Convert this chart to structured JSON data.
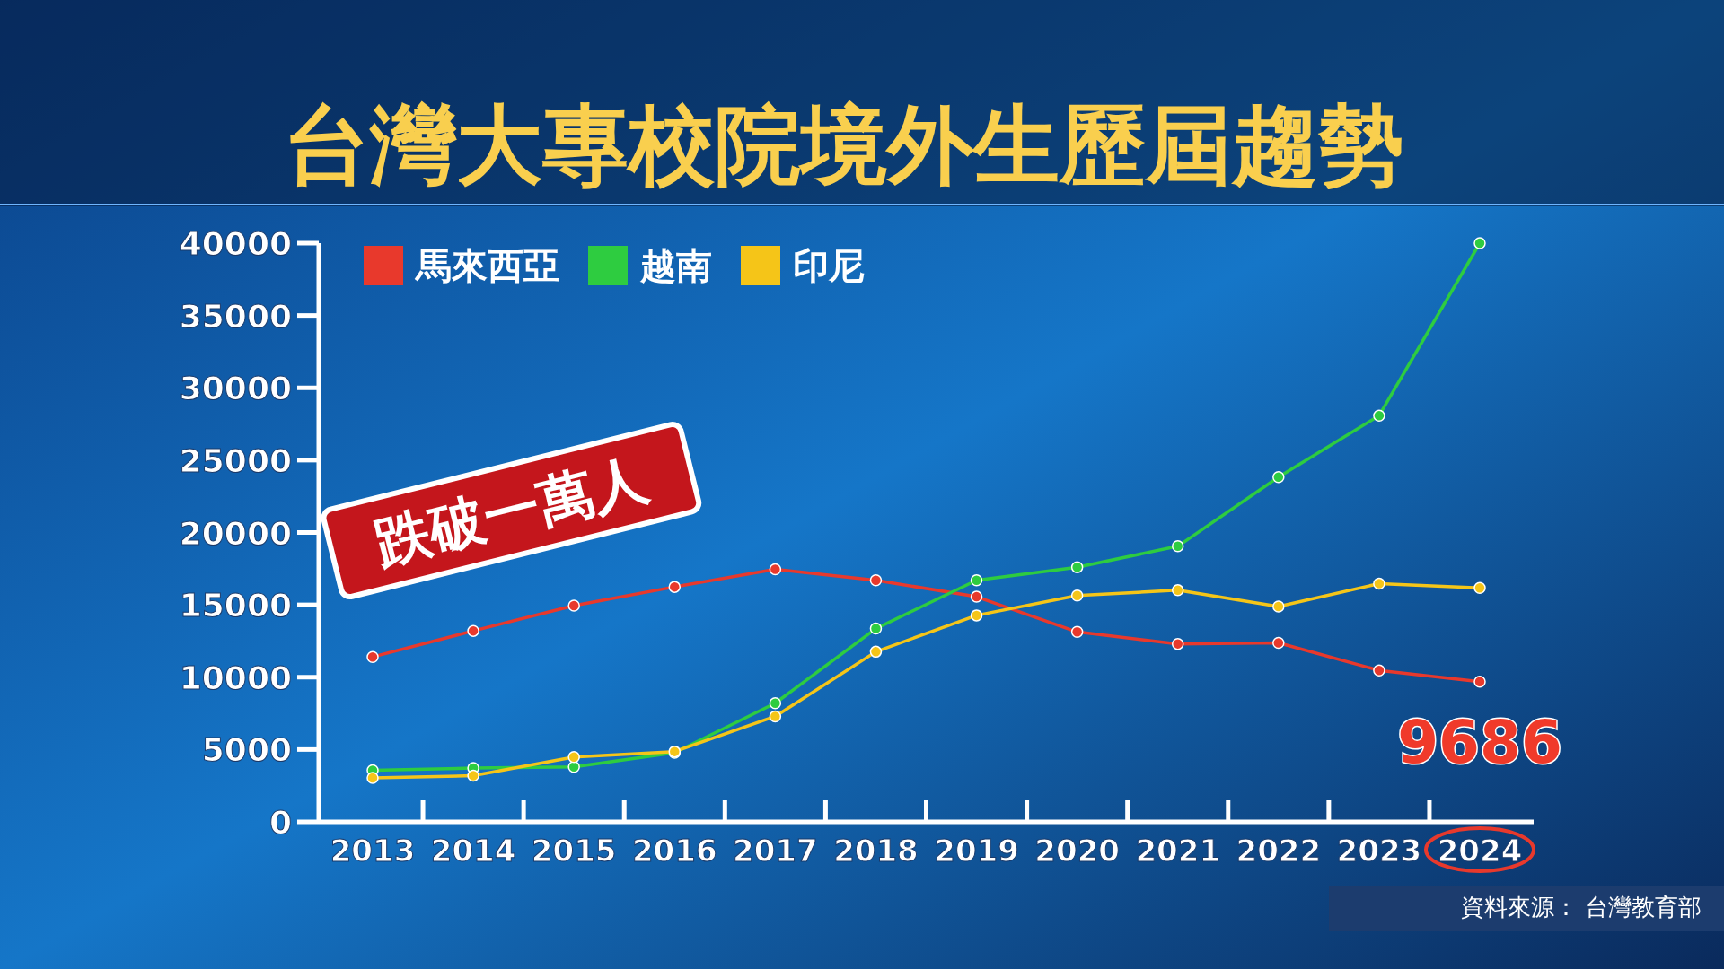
{
  "chart_data": {
    "type": "line",
    "title": "台灣大專校院境外生歷屆趨勢",
    "categories": [
      "2013",
      "2014",
      "2015",
      "2016",
      "2017",
      "2018",
      "2019",
      "2020",
      "2021",
      "2022",
      "2023",
      "2024"
    ],
    "series": [
      {
        "name": "馬來西亞",
        "color": "#e8392c",
        "values": [
          11400,
          13200,
          14950,
          16240,
          17460,
          16700,
          15560,
          13130,
          12300,
          12370,
          10470,
          9686
        ]
      },
      {
        "name": "越南",
        "color": "#2ecc40",
        "values": [
          3570,
          3720,
          3800,
          4780,
          8200,
          13360,
          16700,
          17600,
          19050,
          23830,
          28080,
          40000
        ]
      },
      {
        "name": "印尼",
        "color": "#f5c518",
        "values": [
          3040,
          3190,
          4480,
          4860,
          7290,
          11760,
          14270,
          15640,
          16010,
          14880,
          16470,
          16170
        ]
      }
    ],
    "ylim": [
      0,
      40000
    ],
    "yticks": [
      0,
      5000,
      10000,
      15000,
      20000,
      25000,
      30000,
      35000,
      40000
    ],
    "grid": false,
    "legend": "top left",
    "marker": "circle",
    "line_style": "solid",
    "annotations": [
      "跌破一萬人",
      {
        "text": "9686",
        "x": "2024",
        "y": 9686
      },
      "資料來源： 台灣教育部"
    ]
  }
}
